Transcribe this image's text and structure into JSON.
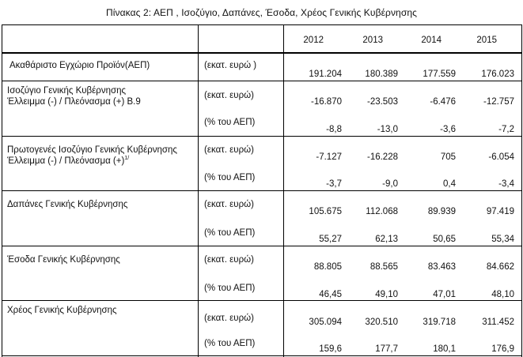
{
  "title": "Πίνακας 2: ΑΕΠ , Ισοζύγιο, Δαπάνες, Έσοδα, Χρέος Γενικής Κυβέρνησης",
  "years": [
    "2012",
    "2013",
    "2014",
    "2015"
  ],
  "rows": [
    {
      "label_lines": [
        "Ακαθάριστο Εγχώριο Προϊόν(ΑΕΠ)"
      ],
      "units": [
        "(εκατ. ευρώ )"
      ],
      "values": [
        [
          "191.204",
          "180.389",
          "177.559",
          "176.023"
        ]
      ]
    },
    {
      "label_lines": [
        "Ισοζύγιο Γενικής Κυβέρνησης",
        "Έλλειμμα  (-) / Πλεόνασμα (+) Β.9"
      ],
      "units": [
        "(εκατ.  ευρώ)",
        "(% του ΑΕΠ)"
      ],
      "values": [
        [
          "-16.870",
          "-23.503",
          "-6.476",
          "-12.757"
        ],
        [
          "-8,8",
          "-13,0",
          "-3,6",
          "-7,2"
        ]
      ]
    },
    {
      "label_lines": [
        "Πρωτογενές Ισοζύγιο  Γενικής Κυβέρνησης",
        "Έλλειμμα (-) / Πλεόνασμα (+)"
      ],
      "label_sup": "1/",
      "units": [
        "(εκατ.  ευρώ)",
        "(% του ΑΕΠ)"
      ],
      "values": [
        [
          "-7.127",
          "-16.228",
          "705",
          "-6.054"
        ],
        [
          "-3,7",
          "-9,0",
          "0,4",
          "-3,4"
        ]
      ]
    },
    {
      "label_lines": [
        "Δαπάνες Γενικής Κυβέρνησης"
      ],
      "units": [
        "(εκατ.  ευρώ)",
        "(% του ΑΕΠ)"
      ],
      "values": [
        [
          "105.675",
          "112.068",
          "89.939",
          "97.419"
        ],
        [
          "55,27",
          "62,13",
          "50,65",
          "55,34"
        ]
      ]
    },
    {
      "label_lines": [
        "Έσοδα Γενικής Κυβέρνησης"
      ],
      "units": [
        "(εκατ.  ευρώ)",
        "(% του ΑΕΠ)"
      ],
      "values": [
        [
          "88.805",
          "88.565",
          "83.463",
          "84.662"
        ],
        [
          "46,45",
          "49,10",
          "47,01",
          "48,10"
        ]
      ]
    },
    {
      "label_lines": [
        "Χρέος Γενικής Κυβέρνησης"
      ],
      "units": [
        "(εκατ.  ευρώ)",
        "(% του ΑΕΠ)"
      ],
      "values": [
        [
          "305.094",
          "320.510",
          "319.718",
          "311.452"
        ],
        [
          "159,6",
          "177,7",
          "180,1",
          "176,9"
        ]
      ]
    }
  ]
}
